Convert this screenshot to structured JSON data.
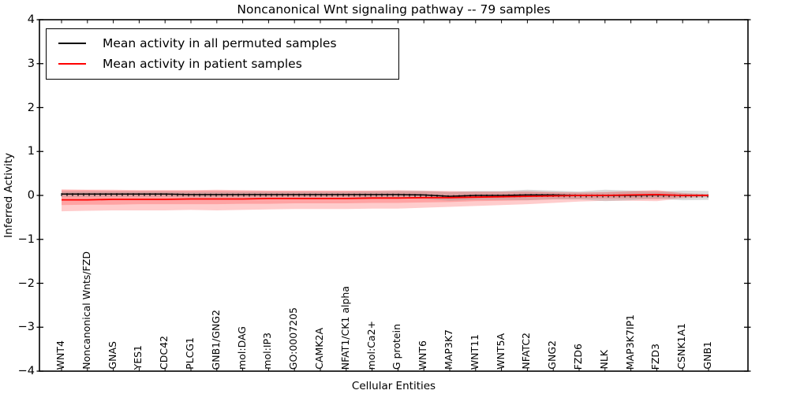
{
  "chart_data": {
    "type": "line",
    "title": "Noncanonical Wnt signaling pathway -- 79 samples",
    "xlabel": "Cellular Entities",
    "ylabel": "Inferred Activity",
    "ylim": [
      -4,
      4
    ],
    "yticks": [
      4,
      3,
      2,
      1,
      0,
      -1,
      -2,
      -3,
      -4
    ],
    "grid": false,
    "legend_position": "upper left",
    "categories": [
      "WNT4",
      "Noncanonical Wnts/FZD",
      "GNAS",
      "YES1",
      "CDC42",
      "PLCG1",
      "GNB1/GNG2",
      "mol:DAG",
      "mol:IP3",
      "GO:0007205",
      "CAMK2A",
      "NFAT1/CK1 alpha",
      "mol:Ca2+",
      "G protein",
      "WNT6",
      "MAP3K7",
      "WNT11",
      "WNT5A",
      "NFATC2",
      "GNG2",
      "FZD6",
      "NLK",
      "MAP3K7IP1",
      "FZD3",
      "CSNK1A1",
      "GNB1"
    ],
    "series": [
      {
        "name": "Mean activity in all permuted samples",
        "color": "#000000",
        "band_color": "#999999",
        "band_opacity": 0.35,
        "values": [
          0.03,
          0.03,
          0.03,
          0.03,
          0.03,
          0.02,
          0.02,
          0.02,
          0.02,
          0.02,
          0.02,
          0.02,
          0.02,
          0.02,
          0.01,
          -0.02,
          0.0,
          0.0,
          0.01,
          0.01,
          0.0,
          0.0,
          0.0,
          0.01,
          0.0,
          0.0
        ],
        "band_upper": [
          0.09,
          0.09,
          0.09,
          0.09,
          0.09,
          0.08,
          0.08,
          0.08,
          0.08,
          0.08,
          0.08,
          0.08,
          0.09,
          0.1,
          0.1,
          0.08,
          0.1,
          0.1,
          0.13,
          0.11,
          0.09,
          0.13,
          0.11,
          0.09,
          0.11,
          0.1
        ],
        "band_lower": [
          -0.03,
          -0.03,
          -0.03,
          -0.03,
          -0.03,
          -0.04,
          -0.04,
          -0.04,
          -0.04,
          -0.04,
          -0.04,
          -0.04,
          -0.05,
          -0.06,
          -0.08,
          -0.12,
          -0.1,
          -0.1,
          -0.11,
          -0.09,
          -0.09,
          -0.13,
          -0.11,
          -0.07,
          -0.11,
          -0.1
        ]
      },
      {
        "name": "Mean activity in patient samples",
        "color": "#ff0000",
        "band_color": "#ff0000",
        "band_opacity": 0.2,
        "values": [
          -0.1,
          -0.1,
          -0.09,
          -0.09,
          -0.09,
          -0.08,
          -0.08,
          -0.08,
          -0.07,
          -0.07,
          -0.07,
          -0.07,
          -0.06,
          -0.06,
          -0.05,
          -0.05,
          -0.04,
          -0.03,
          -0.02,
          -0.01,
          0.0,
          0.0,
          0.01,
          0.02,
          0.0,
          0.0
        ],
        "band_upper": [
          0.14,
          0.13,
          0.13,
          0.12,
          0.12,
          0.12,
          0.13,
          0.12,
          0.11,
          0.11,
          0.11,
          0.11,
          0.11,
          0.12,
          0.11,
          0.1,
          0.09,
          0.09,
          0.1,
          0.08,
          0.07,
          0.08,
          0.1,
          0.12,
          0.06,
          0.03
        ],
        "band_lower": [
          -0.36,
          -0.35,
          -0.34,
          -0.34,
          -0.34,
          -0.33,
          -0.34,
          -0.33,
          -0.32,
          -0.31,
          -0.31,
          -0.31,
          -0.3,
          -0.3,
          -0.28,
          -0.26,
          -0.24,
          -0.22,
          -0.2,
          -0.17,
          -0.14,
          -0.12,
          -0.12,
          -0.13,
          -0.07,
          -0.04
        ],
        "band_inner_upper": [
          0.12,
          0.12,
          0.11,
          0.11,
          0.11,
          0.11,
          0.11,
          0.1,
          0.1,
          0.1,
          0.1,
          0.1,
          0.1,
          0.1,
          0.09,
          0.08,
          0.08,
          0.08,
          0.08,
          0.07,
          0.06,
          0.07,
          0.09,
          0.1,
          0.05,
          0.02
        ],
        "band_inner_lower": [
          -0.22,
          -0.21,
          -0.21,
          -0.2,
          -0.2,
          -0.2,
          -0.2,
          -0.19,
          -0.19,
          -0.18,
          -0.18,
          -0.18,
          -0.17,
          -0.17,
          -0.16,
          -0.15,
          -0.13,
          -0.12,
          -0.11,
          -0.09,
          -0.08,
          -0.07,
          -0.07,
          -0.09,
          -0.04,
          -0.02
        ]
      }
    ]
  }
}
